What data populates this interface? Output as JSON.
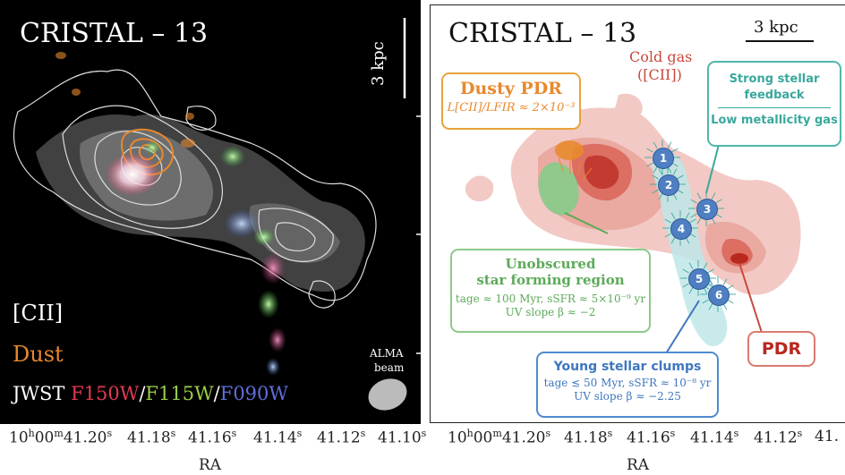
{
  "left": {
    "title": "CRISTAL – 13",
    "scale": "3 kpc",
    "legend_cii": "[CII]",
    "legend_dust": "Dust",
    "legend_jwst": "JWST",
    "legend_f150": "F150W",
    "legend_sep1": "/",
    "legend_f115": "F115W",
    "legend_sep2": "/",
    "legend_f090": "F090W",
    "beam_line1": "ALMA",
    "beam_line2": "beam"
  },
  "right": {
    "title": "CRISTAL – 13",
    "scale": "3 kpc",
    "cold_gas_line1": "Cold gas",
    "cold_gas_line2": "([CII])",
    "dusty_title": "Dusty PDR",
    "dusty_ratio": "L[CII]/LFIR ≈ 2×10⁻³",
    "feedback_line1": "Strong stellar",
    "feedback_line2": "feedback",
    "feedback_line3": "Low metallicity gas",
    "unobscured_line1": "Unobscured",
    "unobscured_line2": "star forming region",
    "unobscured_line3": "tage ≈ 100 Myr, sSFR ≈ 5×10⁻⁹ yr",
    "unobscured_line4": "UV slope β ≈ −2",
    "clumps_title": "Young stellar clumps",
    "clumps_line2": "tage ≲ 50 Myr, sSFR ≈ 10⁻⁸ yr",
    "clumps_line3": "UV slope β ≈ −2.25",
    "pdr_label": "PDR",
    "clump_numbers": [
      "1",
      "2",
      "3",
      "4",
      "5",
      "6"
    ]
  },
  "axes": {
    "left_ticks": [
      "10h00m41.20s",
      "41.18s",
      "41.16s",
      "41.14s",
      "41.12s",
      "41.10s"
    ],
    "right_ticks": [
      "10h00m41.20s",
      "41.18s",
      "41.16s",
      "41.14s",
      "41.12s",
      "41."
    ],
    "xlabel": "RA"
  },
  "colors": {
    "dust": "#e8892e",
    "green": "#5daa5a",
    "blue": "#3f77bd",
    "teal": "#3aa89c",
    "pdr": "#c8483c"
  }
}
